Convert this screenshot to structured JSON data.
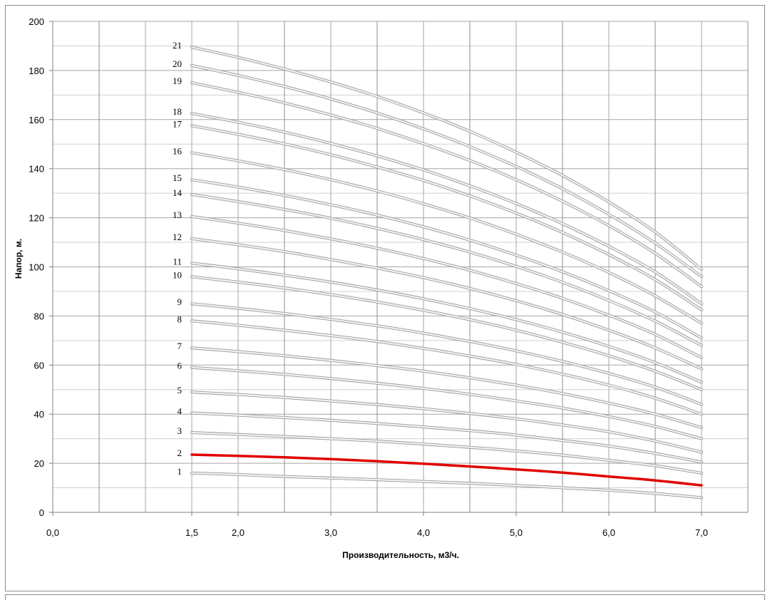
{
  "chart_data": {
    "type": "line",
    "xlabel": "Производительность, м3/ч.",
    "ylabel": "Напор, м.",
    "xlim": [
      0,
      7.5
    ],
    "ylim": [
      0,
      200
    ],
    "x_ticks": [
      "0,0",
      "1,5",
      "2,0",
      "3,0",
      "4,0",
      "5,0",
      "6,0",
      "7,0"
    ],
    "x_tick_values": [
      0,
      1.5,
      2,
      3,
      4,
      5,
      6,
      7
    ],
    "y_ticks": [
      "0",
      "20",
      "40",
      "60",
      "80",
      "100",
      "120",
      "140",
      "160",
      "180",
      "200"
    ],
    "y_tick_values": [
      0,
      20,
      40,
      60,
      80,
      100,
      120,
      140,
      160,
      180,
      200
    ],
    "grid": true,
    "legend": "none",
    "highlight_color": "#e00000",
    "curve_color": "#c8c8c8",
    "x": [
      1.5,
      2,
      2.5,
      3,
      3.5,
      4,
      4.5,
      5,
      5.5,
      6,
      6.5,
      7
    ],
    "series": [
      {
        "name": "1",
        "highlight": false,
        "values": [
          16,
          15.4,
          14.6,
          14,
          13.3,
          12.6,
          11.8,
          11,
          10,
          9,
          7.7,
          6
        ]
      },
      {
        "name": "2",
        "highlight": true,
        "values": [
          23.5,
          23,
          22.4,
          21.7,
          20.8,
          19.8,
          18.7,
          17.5,
          16.2,
          14.6,
          13,
          11
        ]
      },
      {
        "name": "3",
        "highlight": false,
        "values": [
          32.5,
          31.7,
          30.9,
          30,
          29,
          27.8,
          26.5,
          25,
          23.3,
          21.2,
          19,
          16
        ]
      },
      {
        "name": "4",
        "highlight": false,
        "values": [
          40.5,
          39.6,
          38.6,
          37.5,
          36.2,
          34.8,
          33.3,
          31.5,
          29.3,
          27,
          24,
          20.5
        ]
      },
      {
        "name": "5",
        "highlight": false,
        "values": [
          49,
          48,
          46.8,
          45.4,
          43.9,
          42.2,
          40.3,
          38.1,
          35.6,
          32.8,
          29,
          24.5
        ]
      },
      {
        "name": "6",
        "highlight": false,
        "values": [
          59,
          57.7,
          56.2,
          54.5,
          52.6,
          50.5,
          48.1,
          45.4,
          42.5,
          39,
          35,
          30
        ]
      },
      {
        "name": "7",
        "highlight": false,
        "values": [
          67,
          65.5,
          63.8,
          61.9,
          59.8,
          57.5,
          54.8,
          51.8,
          48.4,
          44.5,
          40,
          34.5
        ]
      },
      {
        "name": "8",
        "highlight": false,
        "values": [
          78,
          76.2,
          74.2,
          72,
          69.6,
          66.8,
          63.7,
          60.3,
          56.3,
          51.8,
          46.5,
          40
        ]
      },
      {
        "name": "9",
        "highlight": false,
        "values": [
          85,
          83.1,
          81,
          78.6,
          76,
          73,
          69.6,
          65.8,
          61.5,
          56.6,
          51,
          44
        ]
      },
      {
        "name": "10",
        "highlight": false,
        "values": [
          96,
          93.8,
          91.4,
          88.7,
          85.7,
          82.3,
          78.5,
          74.2,
          69.3,
          63.8,
          57.5,
          50
        ]
      },
      {
        "name": "11",
        "highlight": false,
        "values": [
          101.5,
          99.2,
          96.6,
          93.8,
          90.6,
          87,
          83,
          78.5,
          73.4,
          67.6,
          61,
          53
        ]
      },
      {
        "name": "12",
        "highlight": false,
        "values": [
          111.5,
          109,
          106.2,
          103,
          99.5,
          95.6,
          91.2,
          86.2,
          80.6,
          74.2,
          67,
          58.5
        ]
      },
      {
        "name": "13",
        "highlight": false,
        "values": [
          120.5,
          117.8,
          114.8,
          111.4,
          107.6,
          103.4,
          98.6,
          93.2,
          87.2,
          80.3,
          72.5,
          63
        ]
      },
      {
        "name": "14",
        "highlight": false,
        "values": [
          129.5,
          126.6,
          123.4,
          119.8,
          115.7,
          111.1,
          106,
          100.2,
          93.7,
          86.3,
          77.9,
          68
        ]
      },
      {
        "name": "15",
        "highlight": false,
        "values": [
          135.5,
          132.5,
          129.1,
          125.3,
          121.1,
          116.3,
          110.9,
          104.8,
          98,
          90.3,
          81.6,
          71
        ]
      },
      {
        "name": "16",
        "highlight": false,
        "values": [
          146.5,
          143.2,
          139.6,
          135.5,
          130.9,
          125.7,
          119.9,
          113.3,
          106,
          97.7,
          88.2,
          77
        ]
      },
      {
        "name": "17",
        "highlight": false,
        "values": [
          157.5,
          154,
          150.1,
          145.7,
          140.7,
          135.2,
          128.9,
          121.9,
          114,
          105,
          94.8,
          82.5
        ]
      },
      {
        "name": "18",
        "highlight": false,
        "values": [
          162.5,
          158.9,
          154.9,
          150.3,
          145.2,
          139.5,
          133,
          125.8,
          117.6,
          108.4,
          97.9,
          85
        ]
      },
      {
        "name": "19",
        "highlight": false,
        "values": [
          175,
          171.1,
          166.8,
          161.9,
          156.4,
          150.2,
          143.3,
          135.5,
          126.7,
          116.8,
          105.5,
          92
        ]
      },
      {
        "name": "20",
        "highlight": false,
        "values": [
          182,
          178,
          173.5,
          168.4,
          162.7,
          156.2,
          149,
          140.9,
          131.8,
          121.4,
          109.7,
          96
        ]
      },
      {
        "name": "21",
        "highlight": false,
        "values": [
          189.5,
          185.3,
          180.6,
          175.3,
          169.4,
          162.7,
          155.2,
          146.7,
          137.2,
          126.4,
          114.2,
          99
        ]
      }
    ]
  }
}
